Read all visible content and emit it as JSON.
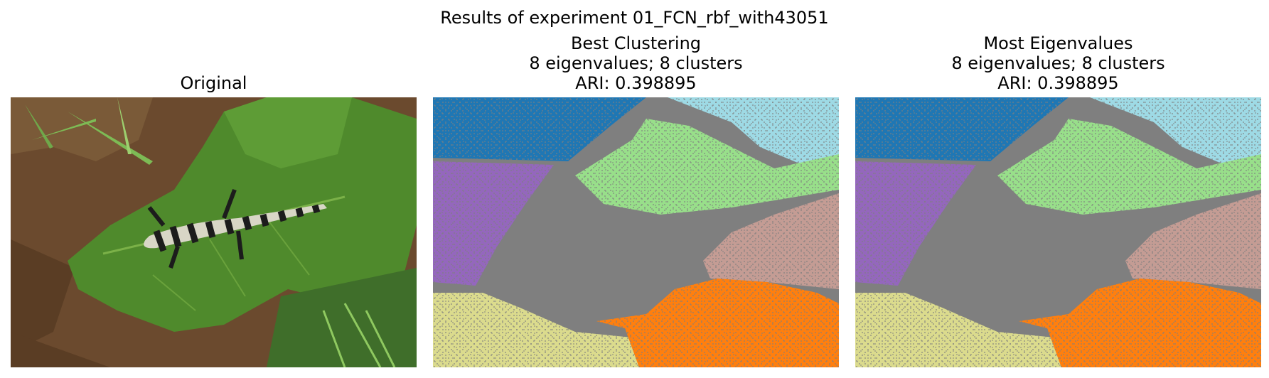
{
  "suptitle": "Results of experiment 01_FCN_rbf_with43051",
  "panels": [
    {
      "id": "original",
      "title_lines": [
        "Original"
      ]
    },
    {
      "id": "best",
      "title_lines": [
        "Best Clustering",
        "8 eigenvalues; 8 clusters",
        "ARI: 0.398895"
      ]
    },
    {
      "id": "most",
      "title_lines": [
        "Most Eigenvalues",
        "8 eigenvalues; 8 clusters",
        "ARI: 0.398895"
      ]
    }
  ],
  "cluster_colors": {
    "blue": "#1f77b4",
    "light_blue": "#9edae5",
    "gray": "#7f7f7f",
    "light_green": "#98df8a",
    "purple": "#9467bd",
    "rose": "#c49c94",
    "khaki": "#dbdb8d",
    "orange": "#ff7f0e"
  },
  "photo_colors": {
    "soil": "#6b4a2e",
    "leaf": "#4f8a2c",
    "leaf_light": "#7bb148",
    "salamander_dark": "#1c1c1c",
    "salamander_light": "#d8d6c6"
  }
}
